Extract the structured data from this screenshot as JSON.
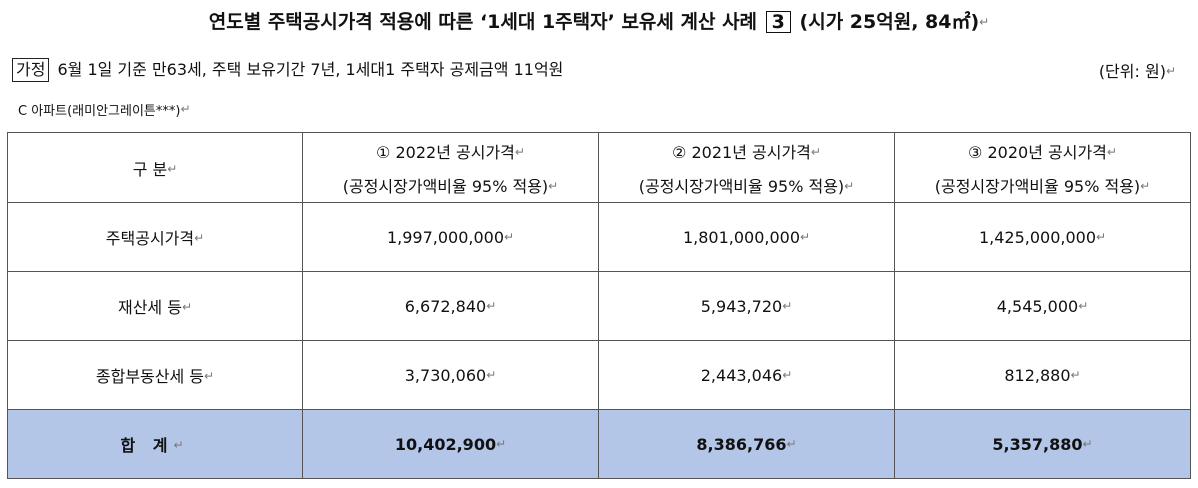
{
  "title": {
    "main": "연도별 주택공시가격 적용에 따른 ‘1세대 1주택자’ 보유세 계산 사례",
    "box_number": "3",
    "suffix": "(시가 25억원, 84㎡)"
  },
  "assumption": {
    "tag": "가정",
    "text": "6월 1일 기준 만63세, 주택 보유기간 7년, 1세대1 주택자 공제금액 11억원",
    "unit": "(단위: 원)"
  },
  "caption": "C 아파트(래미안그레이튼***)",
  "return_mark": "↵",
  "table": {
    "header": {
      "label": "구  분",
      "columns": [
        {
          "title": "① 2022년 공시가격",
          "sub": "(공정시장가액비율 95% 적용)"
        },
        {
          "title": "② 2021년 공시가격",
          "sub": "(공정시장가액비율 95% 적용)"
        },
        {
          "title": "③ 2020년 공시가격",
          "sub": "(공정시장가액비율 95% 적용)"
        }
      ]
    },
    "rows": [
      {
        "label": "주택공시가격",
        "values": [
          "1,997,000,000",
          "1,801,000,000",
          "1,425,000,000"
        ]
      },
      {
        "label": "재산세 등",
        "values": [
          "6,672,840",
          "5,943,720",
          "4,545,000"
        ]
      },
      {
        "label": "종합부동산세 등",
        "values": [
          "3,730,060",
          "2,443,046",
          "812,880"
        ]
      }
    ],
    "total": {
      "label": "합 계",
      "values": [
        "10,402,900",
        "8,386,766",
        "5,357,880"
      ]
    }
  },
  "colors": {
    "total_row_bg": "#b4c6e7",
    "border": "#555555"
  }
}
